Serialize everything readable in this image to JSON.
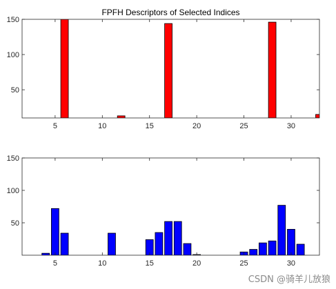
{
  "chart_data": [
    {
      "type": "bar",
      "title": "FPFH Descriptors of Selected Indices",
      "xlabel": "",
      "ylabel": "",
      "xlim": [
        1.5,
        33
      ],
      "ylim": [
        10,
        150
      ],
      "xticks": [
        5,
        10,
        15,
        20,
        25,
        30
      ],
      "yticks": [
        50,
        100,
        150
      ],
      "bar_color": "#ff0000",
      "x": [
        1,
        2,
        3,
        4,
        5,
        6,
        7,
        8,
        9,
        10,
        11,
        12,
        13,
        14,
        15,
        16,
        17,
        18,
        19,
        20,
        21,
        22,
        23,
        24,
        25,
        26,
        27,
        28,
        29,
        30,
        31,
        32,
        33
      ],
      "values": [
        0,
        0,
        0,
        0,
        0,
        150,
        0,
        10,
        0,
        0,
        0,
        13,
        0,
        0,
        0,
        0,
        144,
        0,
        0,
        0,
        0,
        6,
        9,
        0,
        0,
        0,
        0,
        146,
        0,
        0,
        0,
        0,
        15
      ]
    },
    {
      "type": "bar",
      "title": "",
      "xlabel": "",
      "ylabel": "",
      "xlim": [
        1.5,
        33
      ],
      "ylim": [
        0,
        150
      ],
      "xticks": [
        5,
        10,
        15,
        20,
        25,
        30
      ],
      "yticks": [
        50,
        100,
        150
      ],
      "bar_color": "#0000ff",
      "x": [
        1,
        2,
        3,
        4,
        5,
        6,
        7,
        8,
        9,
        10,
        11,
        12,
        13,
        14,
        15,
        16,
        17,
        18,
        19,
        20,
        21,
        22,
        23,
        24,
        25,
        26,
        27,
        28,
        29,
        30,
        31,
        32,
        33
      ],
      "values": [
        1,
        0,
        0,
        3,
        72,
        34,
        0,
        0,
        0,
        0,
        34,
        0,
        0,
        0,
        24,
        35,
        52,
        52,
        18,
        1,
        0,
        0,
        0,
        0,
        5,
        9,
        19,
        22,
        77,
        40,
        17,
        0,
        0
      ]
    }
  ],
  "watermark": "CSDN @骑羊儿放狼"
}
